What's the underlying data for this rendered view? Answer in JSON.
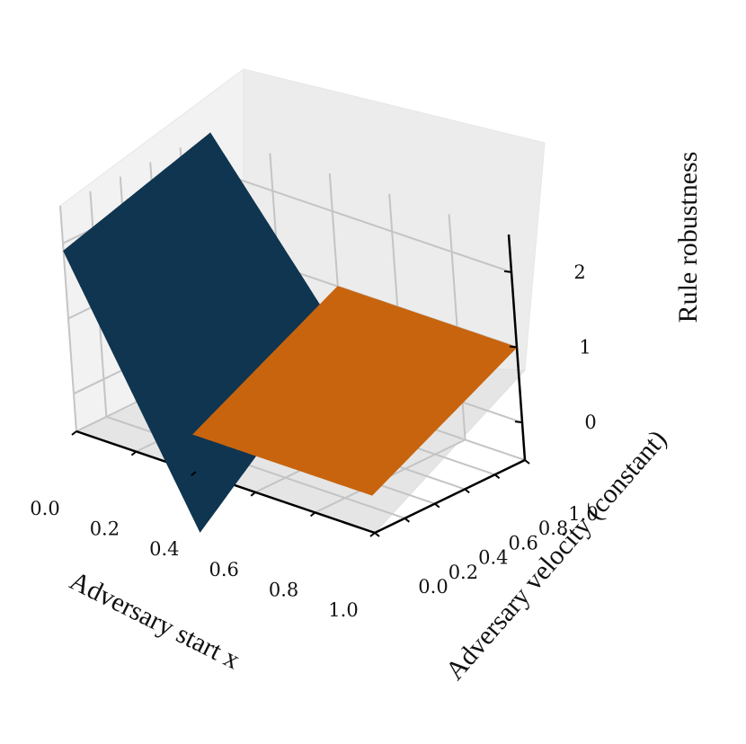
{
  "chart_data": {
    "type": "surface3d",
    "title": "",
    "xlabel": "Adversary start x",
    "ylabel": "Adversary velocity (constant)",
    "zlabel": "Rule robustness",
    "x_ticks": [
      "0.0",
      "0.2",
      "0.4",
      "0.6",
      "0.8",
      "1.0"
    ],
    "y_ticks": [
      "0.0",
      "0.2",
      "0.4",
      "0.6",
      "0.8",
      "1.0"
    ],
    "z_ticks": [
      "0",
      "1",
      "2"
    ],
    "xlim": [
      0,
      1
    ],
    "ylim": [
      0,
      1
    ],
    "zlim": [
      -0.5,
      2.5
    ],
    "grid": true,
    "series": [
      {
        "color": "#0f3550",
        "x_range": [
          0.0,
          0.4
        ],
        "y_range": [
          0.0,
          1.0
        ],
        "corner_values": {
          "x0_y0": 1.9,
          "x0_y1": 2.5,
          "x1_y0": -1.3,
          "x1_y1": 0.3
        }
      },
      {
        "color": "#c8640e",
        "x_range": [
          0.4,
          1.0
        ],
        "y_range": [
          0.0,
          1.0
        ],
        "corner_values": {
          "x0_y0": 0.0,
          "x0_y1": 1.0,
          "x1_y0": 0.0,
          "x1_y1": 1.0
        }
      }
    ]
  }
}
